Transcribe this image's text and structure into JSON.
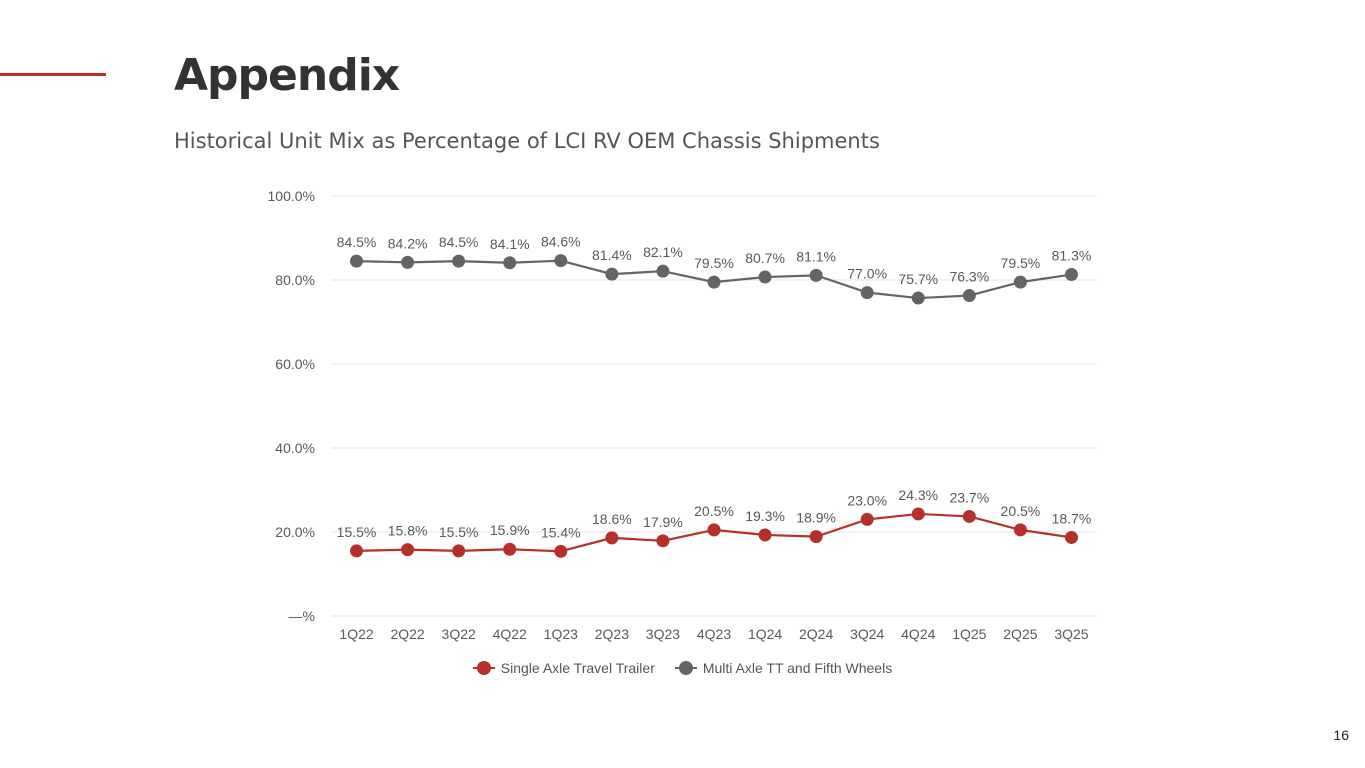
{
  "slide": {
    "title": "Appendix",
    "subtitle": "Historical Unit Mix as Percentage of LCI RV OEM Chassis Shipments",
    "page_number": "16",
    "accent_color": "#b5302a"
  },
  "chart_data": {
    "type": "line",
    "title": "Historical Unit Mix as Percentage of LCI RV OEM Chassis Shipments",
    "xlabel": "",
    "ylabel": "",
    "ylim": [
      0,
      100
    ],
    "yticks": [
      0,
      20,
      40,
      60,
      80,
      100
    ],
    "ytick_labels": [
      "—%",
      "20.0%",
      "40.0%",
      "60.0%",
      "80.0%",
      "100.0%"
    ],
    "grid": true,
    "legend_position": "bottom",
    "categories": [
      "1Q22",
      "2Q22",
      "3Q22",
      "4Q22",
      "1Q23",
      "2Q23",
      "3Q23",
      "4Q23",
      "1Q24",
      "2Q24",
      "3Q24",
      "4Q24",
      "1Q25",
      "2Q25",
      "3Q25"
    ],
    "series": [
      {
        "name": "Single Axle Travel Trailer",
        "color": "#b5302a",
        "values": [
          15.5,
          15.8,
          15.5,
          15.9,
          15.4,
          18.6,
          17.9,
          20.5,
          19.3,
          18.9,
          23.0,
          24.3,
          23.7,
          20.5,
          18.7
        ],
        "labels": [
          "15.5%",
          "15.8%",
          "15.5%",
          "15.9%",
          "15.4%",
          "18.6%",
          "17.9%",
          "20.5%",
          "19.3%",
          "18.9%",
          "23.0%",
          "24.3%",
          "23.7%",
          "20.5%",
          "18.7%"
        ]
      },
      {
        "name": "Multi Axle TT and Fifth Wheels",
        "color": "#646464",
        "values": [
          84.5,
          84.2,
          84.5,
          84.1,
          84.6,
          81.4,
          82.1,
          79.5,
          80.7,
          81.1,
          77.0,
          75.7,
          76.3,
          79.5,
          81.3
        ],
        "labels": [
          "84.5%",
          "84.2%",
          "84.5%",
          "84.1%",
          "84.6%",
          "81.4%",
          "82.1%",
          "79.5%",
          "80.7%",
          "81.1%",
          "77.0%",
          "75.7%",
          "76.3%",
          "79.5%",
          "81.3%"
        ]
      }
    ]
  }
}
